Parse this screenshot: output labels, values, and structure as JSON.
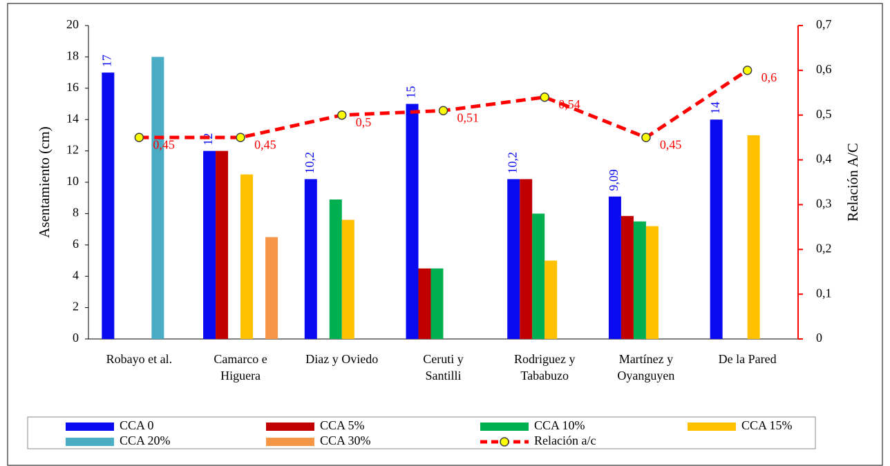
{
  "chart_data": {
    "type": "bar",
    "categories": [
      "Robayo et al.",
      "Camarco e\nHiguera",
      "Diaz y Oviedo",
      "Ceruti y\nSantilli",
      "Rodriguez y\nTababuzo",
      "Martínez y\nOyanguyen",
      "De la Pared"
    ],
    "y_label": "Asentamiento (cm)",
    "y2_label": "Relación A/C",
    "ylim": [
      0,
      20
    ],
    "yticks": [
      0,
      2,
      4,
      6,
      8,
      10,
      12,
      14,
      16,
      18,
      20
    ],
    "y2lim": [
      0,
      0.7
    ],
    "y2ticks": [
      0,
      {
        "value": 0.1,
        "label": "0,1"
      },
      {
        "value": 0.2,
        "label": "0,2"
      },
      {
        "value": 0.3,
        "label": "0,3"
      },
      {
        "value": 0.4,
        "label": "0,4"
      },
      {
        "value": 0.5,
        "label": "0,5"
      },
      {
        "value": 0.6,
        "label": "0,6"
      },
      {
        "value": 0.7,
        "label": "0,7"
      }
    ],
    "grid": false,
    "legend": "bottom",
    "series": [
      {
        "name": "CCA 0",
        "color": "#0a0af0",
        "values": [
          17,
          12,
          10.2,
          15,
          10.2,
          9.09,
          14
        ],
        "value_labels": [
          "17",
          "12",
          "10,2",
          "15",
          "10,2",
          "9,09",
          "14"
        ]
      },
      {
        "name": "CCA 5%",
        "color": "#c00000",
        "values": [
          null,
          12,
          null,
          4.5,
          10.2,
          7.85,
          null
        ]
      },
      {
        "name": "CCA 10%",
        "color": "#00b050",
        "values": [
          null,
          null,
          8.9,
          4.5,
          8,
          7.5,
          null
        ]
      },
      {
        "name": "CCA 15%",
        "color": "#ffc000",
        "values": [
          null,
          10.5,
          7.6,
          null,
          5,
          7.2,
          13
        ]
      },
      {
        "name": "CCA 20%",
        "color": "#4bacc6",
        "values": [
          18,
          null,
          null,
          null,
          null,
          null,
          null
        ]
      },
      {
        "name": "CCA 30%",
        "color": "#f79646",
        "values": [
          null,
          6.5,
          null,
          null,
          null,
          null,
          null
        ]
      },
      {
        "name": "Relación a/c",
        "color": "#ff0000",
        "type": "line",
        "axis": "y2",
        "values": [
          0.45,
          0.45,
          0.5,
          0.51,
          0.54,
          0.45,
          0.6
        ],
        "value_labels": [
          "0,45",
          "0,45",
          "0,5",
          "0,51",
          "0,54",
          "0,45",
          "0,6"
        ]
      }
    ]
  }
}
